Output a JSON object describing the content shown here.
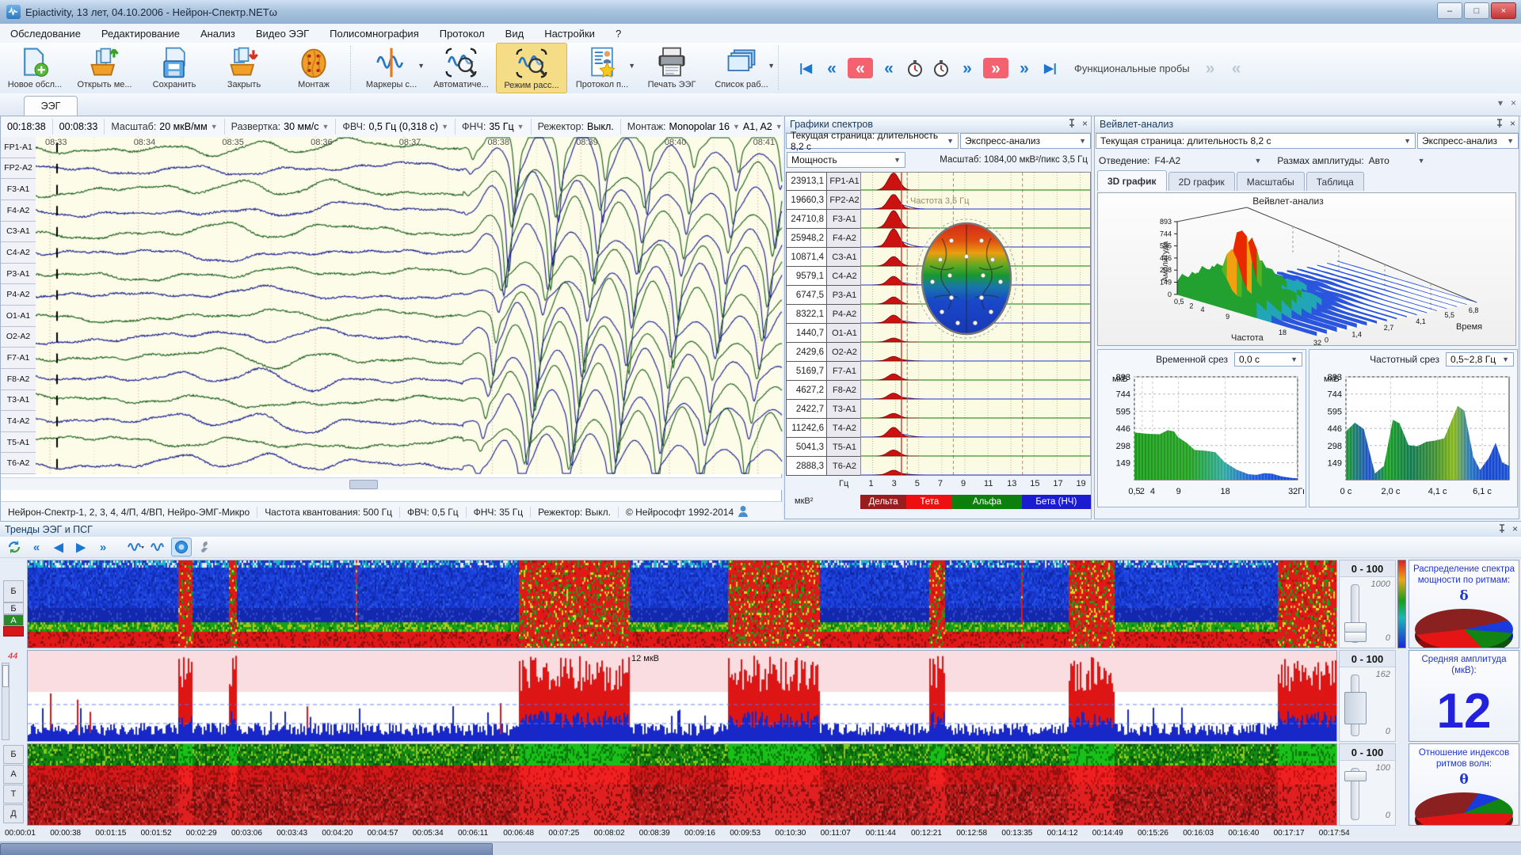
{
  "window": {
    "title": "Epiactivity, 13 лет, 04.10.2006 - Нейрон-Спектр.NETω",
    "min": "–",
    "max": "□",
    "close": "×"
  },
  "menu": {
    "items": [
      "Обследование",
      "Редактирование",
      "Анализ",
      "Видео ЭЭГ",
      "Полисомнография",
      "Протокол",
      "Вид",
      "Настройки",
      "?"
    ]
  },
  "toolbar": {
    "buttons": [
      {
        "label": "Новое обсл...",
        "icon": "new-exam-icon"
      },
      {
        "label": "Открыть ме...",
        "icon": "open-exam-icon"
      },
      {
        "label": "Сохранить",
        "icon": "save-icon"
      },
      {
        "label": "Закрыть",
        "icon": "close-exam-icon"
      },
      {
        "label": "Монтаж",
        "icon": "montage-icon",
        "group_end": true
      },
      {
        "label": "Маркеры с...",
        "icon": "markers-icon",
        "dropdown": true
      },
      {
        "label": "Автоматиче...",
        "icon": "auto-analysis-icon"
      },
      {
        "label": "Режим расс...",
        "icon": "review-mode-icon",
        "active": true
      },
      {
        "label": "Протокол п...",
        "icon": "protocol-icon",
        "dropdown": true
      },
      {
        "label": "Печать ЭЭГ",
        "icon": "print-icon"
      },
      {
        "label": "Список раб...",
        "icon": "worklist-icon",
        "dropdown": true
      }
    ],
    "nav": {
      "label": "Функциональные пробы",
      "buttons_left": [
        {
          "name": "go-first",
          "glyph": "|◀",
          "style": "blue"
        },
        {
          "name": "fast-rewind",
          "glyph": "«",
          "style": "blue"
        },
        {
          "name": "rewind-event",
          "glyph": "«",
          "style": "red"
        },
        {
          "name": "rewind-page",
          "glyph": "«",
          "style": "blue"
        },
        {
          "name": "timer-back",
          "glyph": "timer",
          "style": "plain"
        },
        {
          "name": "timer-forward",
          "glyph": "timer",
          "style": "plain"
        },
        {
          "name": "forward-page",
          "glyph": "»",
          "style": "blue"
        },
        {
          "name": "forward-event",
          "glyph": "»",
          "style": "red"
        },
        {
          "name": "fast-forward",
          "glyph": "»",
          "style": "blue"
        },
        {
          "name": "go-last",
          "glyph": "▶|",
          "style": "blue"
        }
      ],
      "buttons_right": [
        {
          "name": "probe-next",
          "glyph": "»",
          "style": "grey"
        },
        {
          "name": "probe-prev",
          "glyph": "«",
          "style": "grey"
        }
      ]
    }
  },
  "eeg": {
    "tab": "ЭЭГ",
    "controls": {
      "time_full": "00:18:38",
      "time_page": "00:08:33",
      "scale_label": "Масштаб:",
      "scale_value": "20 мкВ/мм",
      "sweep_label": "Развертка:",
      "sweep_value": "30 мм/с",
      "hpf_label": "ФВЧ:",
      "hpf_value": "0,5 Гц (0,318 с)",
      "lpf_label": "ФНЧ:",
      "lpf_value": "35 Гц",
      "notch_label": "Режектор:",
      "notch_value": "Выкл.",
      "montage_label": "Монтаж:",
      "montage_value": "Monopolar 16",
      "reference_value": "A1, A2"
    },
    "channels": [
      "FP1-A1",
      "FP2-A2",
      "F3-A1",
      "F4-A2",
      "C3-A1",
      "C4-A2",
      "P3-A1",
      "P4-A2",
      "O1-A1",
      "O2-A2",
      "F7-A1",
      "F8-A2",
      "T3-A1",
      "T4-A2",
      "T5-A1",
      "T6-A2"
    ],
    "time_labels": [
      "08:33",
      "08:34",
      "08:35",
      "08:36",
      "08:37",
      "08:38",
      "08:39",
      "08:40",
      "08:41"
    ],
    "status": [
      "Нейрон-Спектр-1, 2, 3, 4, 4/П, 4/ВП, Нейро-ЭМГ-Микро",
      "Частота квантования: 500 Гц",
      "ФВЧ: 0,5 Гц",
      "ФНЧ: 35 Гц",
      "Режектор: Выкл.",
      "© Нейрософт 1992-2014"
    ]
  },
  "spectrum": {
    "title": "Графики спектров",
    "page_select": "Текущая страница: длительность 8,2 с",
    "express_select": "Экспресс-анализ",
    "mode_select": "Мощность",
    "scale_info": "Масштаб: 1084,00 мкВ²/пикс 3,5 Гц",
    "cursor_label": "Частота 3,5 Гц",
    "rows": [
      {
        "value": "23913,1",
        "channel": "FP1-A1",
        "power": 23913.1
      },
      {
        "value": "19660,3",
        "channel": "FP2-A2",
        "power": 19660.3
      },
      {
        "value": "24710,8",
        "channel": "F3-A1",
        "power": 24710.8
      },
      {
        "value": "25948,2",
        "channel": "F4-A2",
        "power": 25948.2
      },
      {
        "value": "10871,4",
        "channel": "C3-A1",
        "power": 10871.4
      },
      {
        "value": "9579,1",
        "channel": "C4-A2",
        "power": 9579.1
      },
      {
        "value": "6747,5",
        "channel": "P3-A1",
        "power": 6747.5
      },
      {
        "value": "8322,1",
        "channel": "P4-A2",
        "power": 8322.1
      },
      {
        "value": "1440,7",
        "channel": "O1-A1",
        "power": 1440.7
      },
      {
        "value": "2429,6",
        "channel": "O2-A2",
        "power": 2429.6
      },
      {
        "value": "5169,7",
        "channel": "F7-A1",
        "power": 5169.7
      },
      {
        "value": "4627,2",
        "channel": "F8-A2",
        "power": 4627.2
      },
      {
        "value": "2422,7",
        "channel": "T3-A1",
        "power": 2422.7
      },
      {
        "value": "11242,6",
        "channel": "T4-A2",
        "power": 11242.6
      },
      {
        "value": "5041,3",
        "channel": "T5-A1",
        "power": 5041.3
      },
      {
        "value": "2888,3",
        "channel": "T6-A2",
        "power": 2888.3
      }
    ],
    "x_unit": "Гц",
    "y_unit": "мкВ²",
    "x_ticks": [
      "1",
      "3",
      "5",
      "7",
      "9",
      "11",
      "13",
      "15",
      "17",
      "19"
    ],
    "legend": [
      {
        "label": "Дельта",
        "color": "#9b1c1c",
        "from_hz": 0,
        "to_hz": 4
      },
      {
        "label": "Тета",
        "color": "#ee1010",
        "from_hz": 4,
        "to_hz": 8
      },
      {
        "label": "Альфа",
        "color": "#0b800b",
        "from_hz": 8,
        "to_hz": 14
      },
      {
        "label": "Бета (НЧ)",
        "color": "#1b1bcf",
        "from_hz": 14,
        "to_hz": 20
      }
    ]
  },
  "wavelet": {
    "title": "Вейвлет-анализ",
    "page_select": "Текущая страница: длительность 8,2 с",
    "express_select": "Экспресс-анализ",
    "lead_label": "Отведение:",
    "lead_value": "F4-A2",
    "range_label": "Размах амплитуды:",
    "range_value": "Авто",
    "tabs": [
      "3D график",
      "2D график",
      "Масштабы",
      "Таблица"
    ],
    "plot_title": "Вейвлет-анализ",
    "amp_axis": "Амплитуда",
    "freq_axis": "Частота",
    "time_axis": "Время",
    "amp_ticks": [
      "893",
      "744",
      "595",
      "446",
      "298",
      "149",
      "0"
    ],
    "freq_ticks": [
      "0,5",
      "2",
      "4",
      "9",
      "18",
      "32"
    ],
    "time_ticks": [
      "0",
      "1,4",
      "2,7",
      "4,1",
      "5,5",
      "6,8"
    ],
    "time_slice": {
      "title": "Временной срез",
      "value": "0,0 с",
      "y_unit": "мкВ",
      "y_ticks": [
        "893",
        "744",
        "595",
        "446",
        "298",
        "149"
      ],
      "x_ticks": [
        "0,5",
        "2",
        "4",
        "9",
        "18",
        "32Гц"
      ]
    },
    "freq_slice": {
      "title": "Частотный срез",
      "value": "0,5~2,8 Гц",
      "y_unit": "мкВ",
      "y_ticks": [
        "893",
        "744",
        "595",
        "446",
        "298",
        "149"
      ],
      "x_ticks": [
        "0 с",
        "2,0 с",
        "4,1 с",
        "6,1 с"
      ]
    }
  },
  "trends": {
    "title": "Тренды ЭЭГ и ПСГ",
    "strip1_labels": [
      "Б",
      "Б",
      "А"
    ],
    "strip2_label": "44",
    "strip3_labels": [
      "Б",
      "А",
      "Т",
      "Д"
    ],
    "annotation": "12 мкВ",
    "panels": [
      {
        "range": "0 - 100",
        "max": "1000",
        "min": "0",
        "title": "Распределение спектра мощности по ритмам:",
        "symbol": "δ",
        "pie": [
          {
            "label": "дельта",
            "color": "#8b2020",
            "pct": 47
          },
          {
            "label": "бета",
            "color": "#1a3adc",
            "pct": 10
          },
          {
            "label": "альфа",
            "color": "#128412",
            "pct": 16
          },
          {
            "label": "тета",
            "color": "#e51515",
            "pct": 27
          }
        ]
      },
      {
        "range": "0 - 100",
        "max": "162",
        "min": "0",
        "title": "Средняя амплитуда (мкВ):",
        "value": "12"
      },
      {
        "range": "0 - 100",
        "max": "100",
        "min": "0",
        "title": "Отношение индексов ритмов волн:",
        "symbol": "θ",
        "pie": [
          {
            "label": "дельта",
            "color": "#8b2020",
            "pct": 34
          },
          {
            "label": "бета",
            "color": "#1a3adc",
            "pct": 8
          },
          {
            "label": "альфа",
            "color": "#128412",
            "pct": 13
          },
          {
            "label": "тета",
            "color": "#e51515",
            "pct": 45
          }
        ]
      }
    ],
    "time_axis": [
      "00:00:01",
      "00:00:38",
      "00:01:15",
      "00:01:52",
      "00:02:29",
      "00:03:06",
      "00:03:43",
      "00:04:20",
      "00:04:57",
      "00:05:34",
      "00:06:11",
      "00:06:48",
      "00:07:25",
      "00:08:02",
      "00:08:39",
      "00:09:16",
      "00:09:53",
      "00:10:30",
      "00:11:07",
      "00:11:44",
      "00:12:21",
      "00:12:58",
      "00:13:35",
      "00:14:12",
      "00:14:49",
      "00:15:26",
      "00:16:03",
      "00:16:40",
      "00:17:17",
      "00:17:54"
    ]
  }
}
